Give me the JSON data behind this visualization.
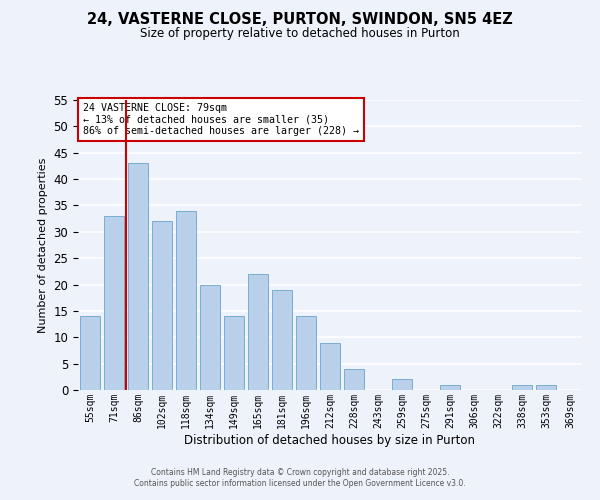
{
  "title": "24, VASTERNE CLOSE, PURTON, SWINDON, SN5 4EZ",
  "subtitle": "Size of property relative to detached houses in Purton",
  "xlabel": "Distribution of detached houses by size in Purton",
  "ylabel": "Number of detached properties",
  "bar_labels": [
    "55sqm",
    "71sqm",
    "86sqm",
    "102sqm",
    "118sqm",
    "134sqm",
    "149sqm",
    "165sqm",
    "181sqm",
    "196sqm",
    "212sqm",
    "228sqm",
    "243sqm",
    "259sqm",
    "275sqm",
    "291sqm",
    "306sqm",
    "322sqm",
    "338sqm",
    "353sqm",
    "369sqm"
  ],
  "bar_values": [
    14,
    33,
    43,
    32,
    34,
    20,
    14,
    22,
    19,
    14,
    9,
    4,
    0,
    2,
    0,
    1,
    0,
    0,
    1,
    1,
    0
  ],
  "bar_color": "#b8d0ea",
  "bar_edge_color": "#7aadd4",
  "vline_color": "#cc0000",
  "vline_pos": 1.5,
  "annotation_text": "24 VASTERNE CLOSE: 79sqm\n← 13% of detached houses are smaller (35)\n86% of semi-detached houses are larger (228) →",
  "annotation_box_color": "#ffffff",
  "annotation_box_edge_color": "#cc0000",
  "ylim": [
    0,
    55
  ],
  "yticks": [
    0,
    5,
    10,
    15,
    20,
    25,
    30,
    35,
    40,
    45,
    50,
    55
  ],
  "bg_color": "#eef2fb",
  "grid_color": "#ffffff",
  "footer_line1": "Contains HM Land Registry data © Crown copyright and database right 2025.",
  "footer_line2": "Contains public sector information licensed under the Open Government Licence v3.0."
}
